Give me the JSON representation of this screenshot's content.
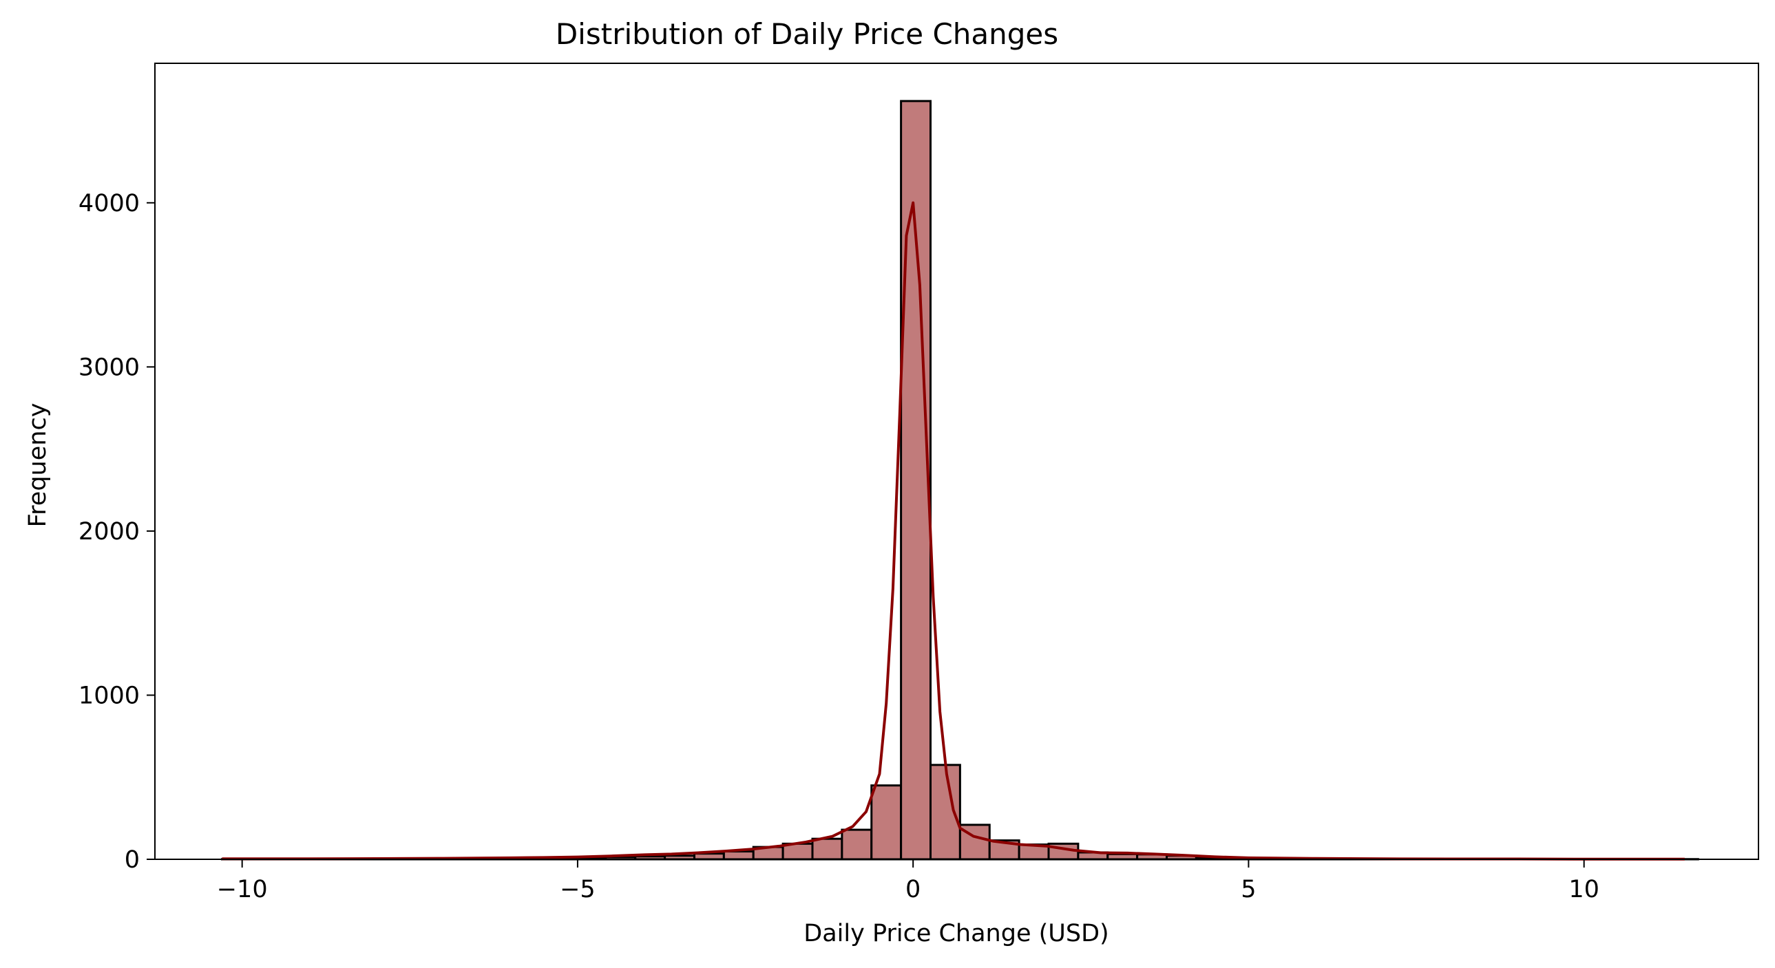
{
  "chart_data": {
    "type": "bar",
    "title": "Distribution of Daily Price Changes",
    "xlabel": "Daily Price Change (USD)",
    "ylabel": "Frequency",
    "xlim": [
      -11.3,
      12.6
    ],
    "ylim": [
      0,
      4850
    ],
    "xticks": [
      -10,
      -5,
      0,
      5,
      10
    ],
    "xtick_labels": [
      "−10",
      "−5",
      "0",
      "5",
      "10"
    ],
    "yticks": [
      0,
      1000,
      2000,
      3000,
      4000
    ],
    "ytick_labels": [
      "0",
      "1000",
      "2000",
      "3000",
      "4000"
    ],
    "grid": false,
    "bin_edges": [
      -10.3,
      -9.86,
      -9.42,
      -8.98,
      -8.54,
      -8.1,
      -7.66,
      -7.22,
      -6.78,
      -6.34,
      -5.9,
      -5.46,
      -5.02,
      -4.58,
      -4.14,
      -3.7,
      -3.26,
      -2.82,
      -2.38,
      -1.94,
      -1.5,
      -1.06,
      -0.62,
      -0.18,
      0.26,
      0.7,
      1.14,
      1.58,
      2.02,
      2.46,
      2.9,
      3.34,
      3.78,
      4.22,
      4.66,
      5.1,
      5.54,
      5.98,
      6.42,
      6.86,
      7.3,
      7.74,
      8.18,
      8.62,
      9.06,
      9.5,
      9.94,
      10.38,
      10.82,
      11.26,
      11.7
    ],
    "values": [
      1,
      1,
      1,
      1,
      1,
      2,
      2,
      3,
      3,
      4,
      6,
      8,
      10,
      14,
      18,
      22,
      35,
      48,
      75,
      95,
      125,
      180,
      450,
      4620,
      575,
      210,
      115,
      90,
      95,
      42,
      32,
      30,
      22,
      12,
      8,
      6,
      5,
      4,
      3,
      3,
      2,
      2,
      2,
      1,
      1,
      1,
      1,
      1,
      1,
      1
    ],
    "kde_x": [
      -10.3,
      -9.0,
      -8.0,
      -7.0,
      -6.0,
      -5.5,
      -5.0,
      -4.5,
      -4.0,
      -3.6,
      -3.2,
      -2.8,
      -2.4,
      -2.0,
      -1.6,
      -1.2,
      -0.9,
      -0.7,
      -0.5,
      -0.4,
      -0.3,
      -0.2,
      -0.1,
      0.0,
      0.1,
      0.2,
      0.3,
      0.4,
      0.5,
      0.6,
      0.7,
      0.9,
      1.2,
      1.6,
      2.0,
      2.4,
      2.8,
      3.2,
      3.6,
      4.0,
      4.5,
      5.0,
      6.0,
      7.0,
      8.0,
      9.0,
      10.0,
      11.5
    ],
    "kde_y": [
      3,
      3,
      4,
      6,
      9,
      11,
      14,
      20,
      28,
      32,
      40,
      50,
      62,
      80,
      105,
      140,
      200,
      290,
      520,
      950,
      1650,
      2700,
      3800,
      4000,
      3500,
      2550,
      1600,
      900,
      520,
      300,
      190,
      140,
      110,
      90,
      80,
      55,
      40,
      38,
      32,
      25,
      15,
      9,
      5,
      3,
      2,
      2,
      1,
      1
    ],
    "bar_color": "#c17b7b",
    "bar_edge_color": "#000000",
    "kde_color": "#8b0000"
  }
}
